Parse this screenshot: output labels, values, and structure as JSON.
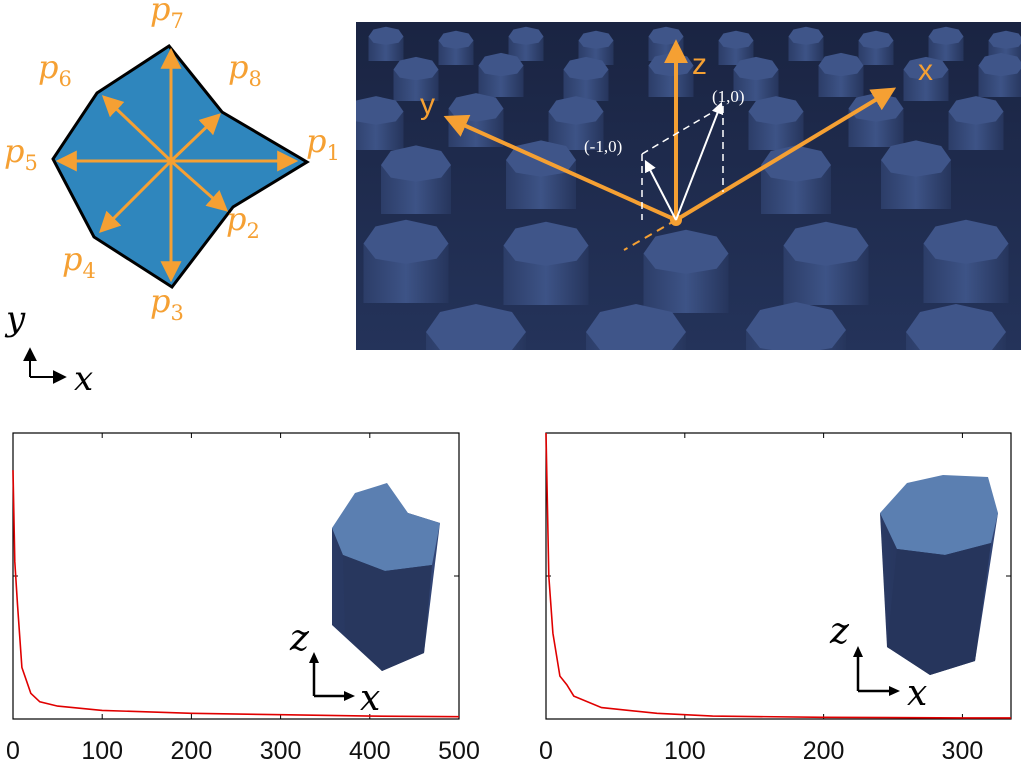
{
  "polygon_panel": {
    "vertex_labels": [
      {
        "id": "p1",
        "name": "p",
        "sub": "1"
      },
      {
        "id": "p2",
        "name": "p",
        "sub": "2"
      },
      {
        "id": "p3",
        "name": "p",
        "sub": "3"
      },
      {
        "id": "p4",
        "name": "p",
        "sub": "4"
      },
      {
        "id": "p5",
        "name": "p",
        "sub": "5"
      },
      {
        "id": "p6",
        "name": "p",
        "sub": "6"
      },
      {
        "id": "p7",
        "name": "p",
        "sub": "7"
      },
      {
        "id": "p8",
        "name": "p",
        "sub": "8"
      }
    ],
    "axis_y": "y",
    "axis_x": "x",
    "fill_color": "#2f86bd",
    "arrow_color": "#f5a033"
  },
  "scene_panel": {
    "axis_z": "z",
    "axis_x": "x",
    "axis_y": "y",
    "coord_label_pos": "(1,0)",
    "coord_label_neg": "(-1,0)",
    "background_color": "#1e2b4b",
    "pillar_color": "#3a4f80"
  },
  "curves": [
    {
      "x_ticks": [
        "0",
        "100",
        "200",
        "300",
        "400",
        "500"
      ],
      "inset_axis_z": "z",
      "inset_axis_x": "x",
      "line_color": "#e00000"
    },
    {
      "x_ticks": [
        "0",
        "100",
        "200",
        "300"
      ],
      "inset_axis_z": "z",
      "inset_axis_x": "x",
      "line_color": "#e00000"
    }
  ],
  "chart_data": [
    {
      "type": "line",
      "x_range": [
        0,
        500
      ],
      "xticks": [
        0,
        100,
        200,
        300,
        400,
        500
      ],
      "series": [
        {
          "x": [
            0,
            2,
            5,
            10,
            20,
            30,
            50,
            100,
            200,
            300,
            400,
            500
          ],
          "y": [
            0.87,
            0.55,
            0.4,
            0.18,
            0.09,
            0.06,
            0.045,
            0.03,
            0.02,
            0.015,
            0.01,
            0.008
          ]
        }
      ],
      "grid": false
    },
    {
      "type": "line",
      "x_range": [
        0,
        335
      ],
      "xticks": [
        0,
        100,
        200,
        300
      ],
      "series": [
        {
          "x": [
            0,
            2,
            5,
            10,
            15,
            20,
            40,
            80,
            120,
            200,
            300,
            335
          ],
          "y": [
            1.0,
            0.5,
            0.3,
            0.15,
            0.12,
            0.08,
            0.04,
            0.02,
            0.01,
            0.006,
            0.004,
            0.004
          ]
        }
      ],
      "grid": false
    }
  ]
}
